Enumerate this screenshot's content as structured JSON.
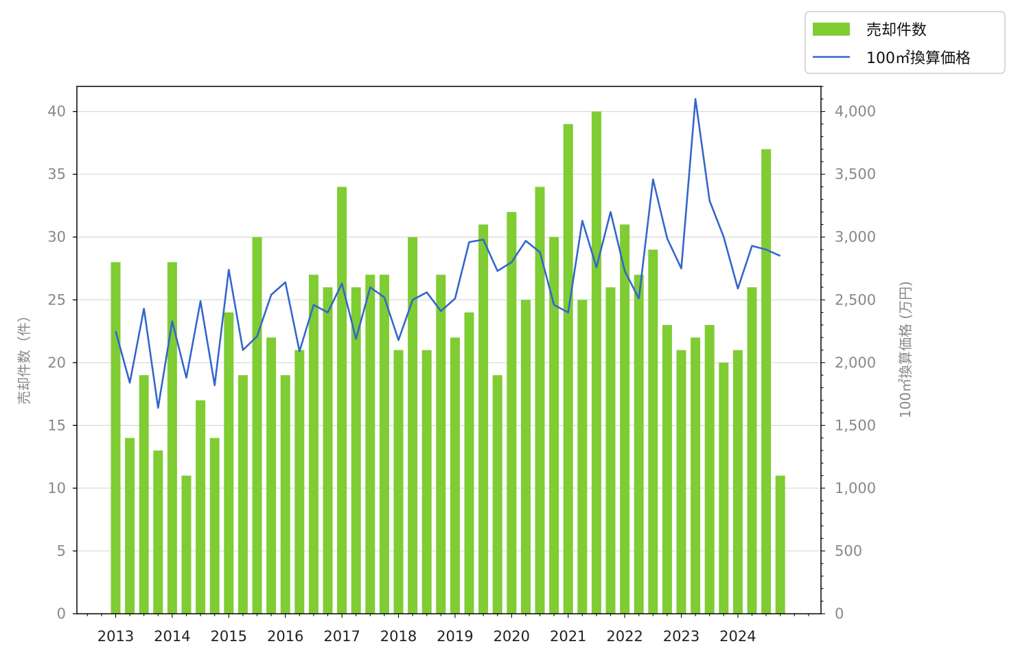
{
  "chart_data": {
    "type": "bar+line",
    "title": "",
    "x_tick_labels": [
      "2013",
      "2014",
      "2015",
      "2016",
      "2017",
      "2018",
      "2019",
      "2020",
      "2021",
      "2022",
      "2023",
      "2024"
    ],
    "x_period": "quarterly",
    "x_start": "2013-Q1",
    "series": [
      {
        "name": "売却件数",
        "type": "bar",
        "axis": "left",
        "color": "#7fcc33",
        "values": [
          28,
          14,
          19,
          13,
          28,
          11,
          17,
          14,
          24,
          19,
          30,
          22,
          19,
          21,
          27,
          26,
          34,
          26,
          27,
          27,
          21,
          30,
          21,
          27,
          22,
          24,
          31,
          19,
          32,
          25,
          34,
          30,
          39,
          25,
          40,
          26,
          31,
          27,
          29,
          23,
          21,
          22,
          23,
          20,
          21,
          26,
          37,
          11
        ]
      },
      {
        "name": "100㎡換算価格",
        "type": "line",
        "axis": "right",
        "color": "#3366cc",
        "values": [
          2250,
          1840,
          2430,
          1640,
          2330,
          1880,
          2490,
          1820,
          2740,
          2100,
          2210,
          2540,
          2640,
          2090,
          2460,
          2400,
          2630,
          2190,
          2600,
          2520,
          2180,
          2500,
          2560,
          2410,
          2510,
          2960,
          2980,
          2730,
          2800,
          2970,
          2880,
          2460,
          2400,
          3130,
          2760,
          3200,
          2730,
          2510,
          3460,
          2990,
          2750,
          4100,
          3290,
          3000,
          2590,
          2930,
          2900,
          2850
        ]
      }
    ],
    "y_left": {
      "label": "売却件数（件）",
      "min": 0,
      "max": 42,
      "ticks": [
        0,
        5,
        10,
        15,
        20,
        25,
        30,
        35,
        40
      ],
      "tick_labels": [
        "0",
        "5",
        "10",
        "15",
        "20",
        "25",
        "30",
        "35",
        "40"
      ]
    },
    "y_right": {
      "label": "100㎡換算価格 (万円)",
      "min": 0,
      "max": 4200,
      "ticks": [
        0,
        500,
        1000,
        1500,
        2000,
        2500,
        3000,
        3500,
        4000
      ],
      "tick_labels": [
        "0",
        "500",
        "1,000",
        "1,500",
        "2,000",
        "2,500",
        "3,000",
        "3,500",
        "4,000"
      ]
    },
    "grid": "horizontal",
    "legend": {
      "placement": "top-right, outside plot",
      "entries": [
        "売却件数",
        "100㎡換算価格"
      ]
    }
  }
}
